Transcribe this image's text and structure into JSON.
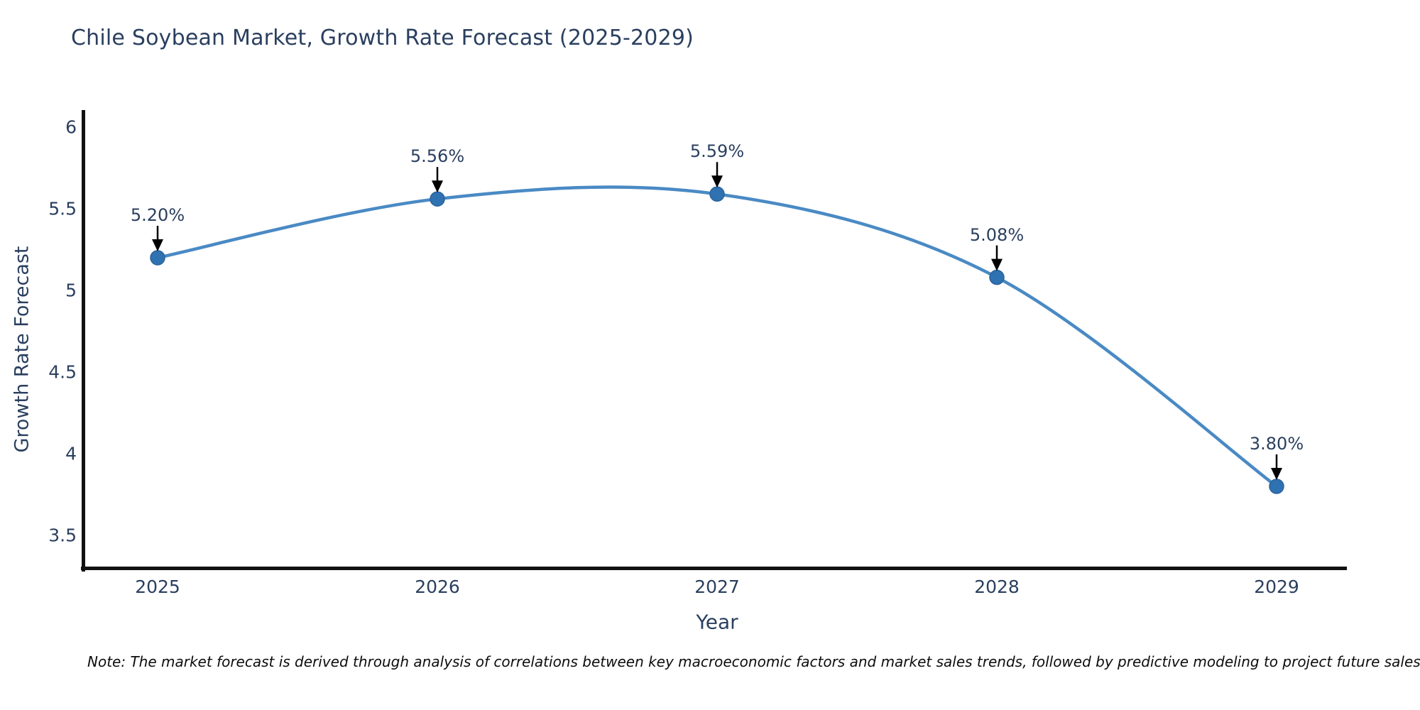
{
  "title": "Chile Soybean Market, Growth Rate Forecast (2025-2029)",
  "note": "Note: The market forecast is derived through analysis of correlations between key macroeconomic factors and market sales trends, followed by predictive modeling to project future sales",
  "chart_data": {
    "type": "line",
    "line_shape": "spline",
    "title": "Chile Soybean Market, Growth Rate Forecast (2025-2029)",
    "xlabel": "Year",
    "ylabel": "Growth Rate Forecast",
    "x": [
      2025,
      2026,
      2027,
      2028,
      2029
    ],
    "series": [
      {
        "name": "Growth Rate Forecast",
        "values": [
          5.2,
          5.56,
          5.59,
          5.08,
          3.8
        ]
      }
    ],
    "data_labels": [
      "5.20%",
      "5.56%",
      "5.59%",
      "5.08%",
      "3.80%"
    ],
    "x_ticks": [
      "2025",
      "2026",
      "2027",
      "2028",
      "2029"
    ],
    "y_ticks": [
      "6",
      "5.5",
      "5",
      "4.5",
      "4",
      "3.5"
    ],
    "y_tick_values": [
      6,
      5.5,
      5,
      4.5,
      4,
      3.5
    ],
    "xlim": [
      2024.73,
      2029.25
    ],
    "ylim": [
      3.29,
      6.1
    ],
    "grid": false,
    "legend": "none",
    "annotation_style": "value-label-with-down-arrow-above-each-point",
    "colors": {
      "line": "#4a8ac4",
      "marker": "#2f72b2",
      "marker_edge": "#2a639c",
      "axis": "#111111",
      "text": "#2a3f5f",
      "annotation_arrow": "#000000",
      "note_text": "#0d0d0d",
      "background": "#ffffff"
    }
  }
}
